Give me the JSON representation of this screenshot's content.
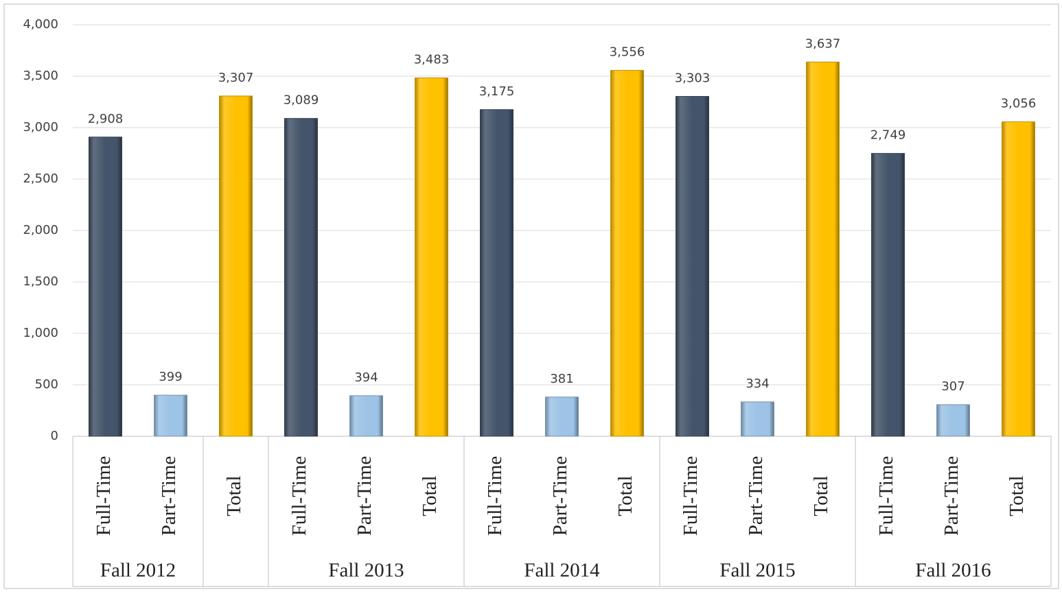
{
  "chart_data": {
    "type": "bar",
    "categories": [
      "Full-Time",
      "Part-Time",
      "Total",
      "Full-Time",
      "Part-Time",
      "Total",
      "Full-Time",
      "Part-Time",
      "Total",
      "Full-Time",
      "Part-Time",
      "Total",
      "Full-Time",
      "Part-Time",
      "Total"
    ],
    "groups": [
      "Fall 2012",
      null,
      "Fall 2013",
      "Fall 2014",
      "Fall 2015",
      "Fall 2016"
    ],
    "group_sizes": [
      2,
      1,
      3,
      3,
      3,
      3
    ],
    "values": [
      2908,
      399,
      3307,
      3089,
      394,
      3483,
      3175,
      381,
      3556,
      3303,
      334,
      3637,
      2749,
      307,
      3056
    ],
    "value_labels": [
      "2,908",
      "399",
      "3,307",
      "3,089",
      "394",
      "3,483",
      "3,175",
      "381",
      "3,556",
      "3,303",
      "334",
      "3,637",
      "2,749",
      "307",
      "3,056"
    ],
    "colors": {
      "Full-Time": "#44546a",
      "Part-Time": "#9dc3e6",
      "Total": "#ffc000"
    },
    "ylim": [
      0,
      4000
    ],
    "yticks": [
      0,
      500,
      {
        "value": 1000,
        "label": "1,000"
      },
      {
        "value": 1500,
        "label": "1,500"
      },
      {
        "value": 2000,
        "label": "2,000"
      },
      {
        "value": 2500,
        "label": "2,500"
      },
      {
        "value": 3000,
        "label": "3,000"
      },
      {
        "value": 3500,
        "label": "3,500"
      },
      {
        "value": 4000,
        "label": "4,000"
      }
    ],
    "grid": true
  }
}
